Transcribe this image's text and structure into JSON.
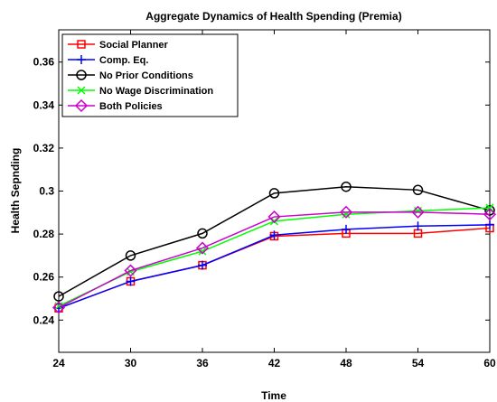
{
  "chart_data": {
    "type": "line",
    "title": "Aggregate Dynamics of Health Spending (Premia)",
    "xlabel": "Time",
    "ylabel": "Health Sepnding",
    "xlim": [
      24,
      60
    ],
    "ylim": [
      0.225,
      0.375
    ],
    "x": [
      24,
      30,
      36,
      42,
      48,
      54,
      60
    ],
    "xticks": [
      "24",
      "30",
      "36",
      "42",
      "48",
      "54",
      "60"
    ],
    "yticks": [
      0.24,
      0.26,
      0.28,
      0.3,
      0.32,
      0.34,
      0.36
    ],
    "ytick_labels": [
      "0.24",
      "0.26",
      "0.28",
      "0.3",
      "0.32",
      "0.34",
      "0.36"
    ],
    "legend_position": "top-left",
    "grid": false,
    "series": [
      {
        "name": "Social Planner",
        "color": "#ff0000",
        "marker": "square",
        "values": [
          0.2455,
          0.258,
          0.2655,
          0.279,
          0.2803,
          0.2803,
          0.2828
        ]
      },
      {
        "name": "Comp. Eq.",
        "color": "#0000ff",
        "marker": "plus",
        "values": [
          0.2455,
          0.258,
          0.2655,
          0.2795,
          0.2822,
          0.2837,
          0.2843
        ]
      },
      {
        "name": "No Prior Conditions",
        "color": "#000000",
        "marker": "circle",
        "values": [
          0.251,
          0.27,
          0.2803,
          0.299,
          0.302,
          0.3005,
          0.291
        ]
      },
      {
        "name": "No Wage Discrimination",
        "color": "#00ff00",
        "marker": "x",
        "values": [
          0.2465,
          0.2625,
          0.272,
          0.286,
          0.2892,
          0.2908,
          0.2922
        ]
      },
      {
        "name": "Both Policies",
        "color": "#cc00cc",
        "marker": "diamond",
        "values": [
          0.2458,
          0.263,
          0.2735,
          0.288,
          0.2902,
          0.2902,
          0.2892
        ]
      }
    ]
  }
}
